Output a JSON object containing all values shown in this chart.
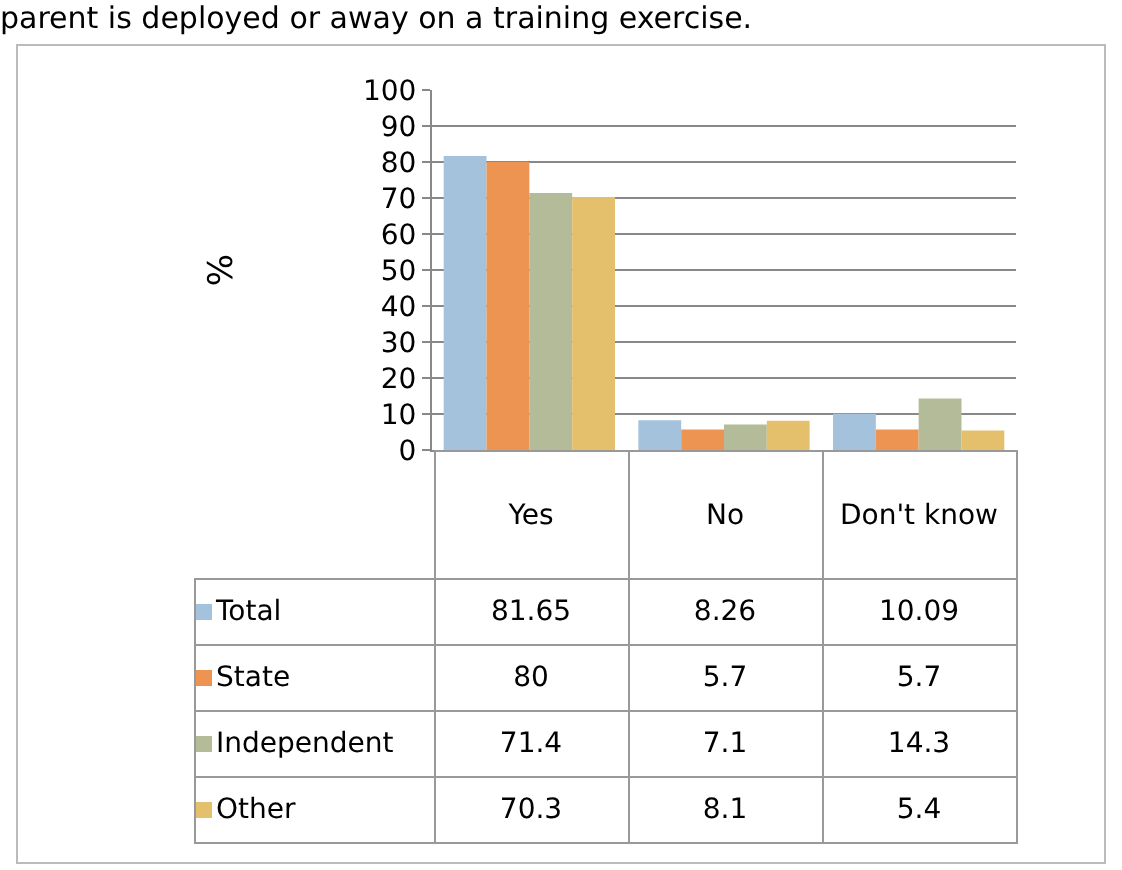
{
  "chart_data": {
    "type": "bar",
    "title": "parent is deployed or away on a training exercise.",
    "ylabel": "%",
    "categories": [
      "Yes",
      "No",
      "Don't know"
    ],
    "series": [
      {
        "name": "Total",
        "color": "#a4c2dc",
        "values": [
          81.65,
          8.26,
          10.09
        ]
      },
      {
        "name": "State",
        "color": "#ee9452",
        "values": [
          80,
          5.7,
          5.7
        ]
      },
      {
        "name": "Independent",
        "color": "#b3bb98",
        "values": [
          71.4,
          7.1,
          14.3
        ]
      },
      {
        "name": "Other",
        "color": "#e5c06c",
        "values": [
          70.3,
          8.1,
          5.4
        ]
      }
    ],
    "ylim": [
      0,
      100
    ],
    "yticks": [
      0,
      10,
      20,
      30,
      40,
      50,
      60,
      70,
      80,
      90,
      100
    ],
    "grid": "y",
    "data_labels": true,
    "legend": "bottom left"
  }
}
